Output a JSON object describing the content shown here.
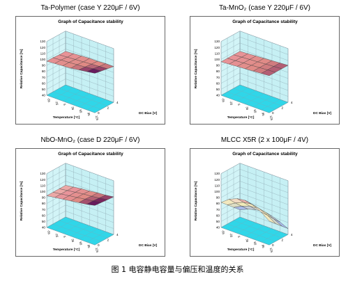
{
  "caption": "图 1  电容静电容量与偏压和温度的关系",
  "chart_data": [
    {
      "type": "surface",
      "panel_title": "Ta-Polymer (case Y 220μF / 6V)",
      "title": "Graph of Capacitance stability",
      "zlabel": "Relative Capacitance [%]",
      "xlabel": "Temperature [°C]",
      "ylabel": "DC Bias [V]",
      "zticks": [
        "130",
        "120",
        "110",
        "100",
        "90",
        "80",
        "70",
        "60",
        "50",
        "40"
      ],
      "xticks": [
        "-55",
        "-25",
        "5",
        "35",
        "65",
        "95",
        "125"
      ],
      "yticks": [
        "0",
        "2",
        "4"
      ],
      "zlim": [
        40,
        130
      ],
      "temperature": [
        -55,
        -25,
        5,
        35,
        65,
        95,
        125
      ],
      "bias": [
        0,
        2,
        4,
        6
      ],
      "values": [
        [
          97,
          98,
          99,
          100,
          102,
          104,
          106
        ],
        [
          97,
          98,
          99,
          100,
          101,
          103,
          104
        ],
        [
          96,
          97,
          98,
          99,
          100,
          101,
          102
        ],
        [
          96,
          97,
          98,
          99,
          99,
          100,
          100
        ]
      ]
    },
    {
      "type": "surface",
      "panel_title": "Ta-MnO₂ (case Y 220μF / 6V)",
      "title": "Graph of Capacitance stability",
      "zlabel": "Relative Capacitance [%]",
      "xlabel": "Temperature [°C]",
      "ylabel": "DC Bias [V]",
      "zticks": [
        "130",
        "120",
        "110",
        "100",
        "90",
        "80",
        "70",
        "60",
        "50",
        "40"
      ],
      "xticks": [
        "-55",
        "-25",
        "5",
        "35",
        "65",
        "95",
        "125"
      ],
      "yticks": [
        "0",
        "2",
        "4"
      ],
      "zlim": [
        40,
        130
      ],
      "temperature": [
        -55,
        -25,
        5,
        35,
        65,
        95,
        125
      ],
      "bias": [
        0,
        2,
        4,
        6
      ],
      "values": [
        [
          96,
          97,
          98,
          99,
          100,
          101,
          102
        ],
        [
          96,
          97,
          98,
          99,
          100,
          101,
          102
        ],
        [
          96,
          97,
          98,
          99,
          100,
          101,
          102
        ],
        [
          96,
          97,
          98,
          99,
          100,
          101,
          102
        ]
      ]
    },
    {
      "type": "surface",
      "panel_title": "NbO-MnO₂ (case D 220μF / 6V)",
      "title": "Graph of Capacitance stability",
      "zlabel": "Relative Capacitance [%]",
      "xlabel": "Temperature [°C]",
      "ylabel": "DC Bias [V]",
      "zticks": [
        "130",
        "120",
        "110",
        "100",
        "90",
        "80",
        "70",
        "60",
        "50",
        "40"
      ],
      "xticks": [
        "-55",
        "-25",
        "5",
        "35",
        "65",
        "95",
        "125"
      ],
      "yticks": [
        "0",
        "2",
        "4"
      ],
      "zlim": [
        40,
        130
      ],
      "temperature": [
        -55,
        -25,
        5,
        35,
        65,
        95,
        125
      ],
      "bias": [
        0,
        2,
        4,
        6
      ],
      "values": [
        [
          93,
          95,
          97,
          99,
          101,
          103,
          106
        ],
        [
          93,
          95,
          97,
          99,
          101,
          103,
          105
        ],
        [
          93,
          95,
          97,
          99,
          100,
          102,
          104
        ],
        [
          93,
          95,
          97,
          98,
          100,
          101,
          103
        ]
      ]
    },
    {
      "type": "surface",
      "panel_title": "MLCC X5R (2 x 100μF / 4V)",
      "title": "Graph of Capacitance stability",
      "zlabel": "Relative Capacitance [%]",
      "xlabel": "Temperature [°C]",
      "ylabel": "DC Bias [V]",
      "zticks": [
        "130",
        "120",
        "110",
        "100",
        "90",
        "80",
        "70",
        "60",
        "50",
        "40"
      ],
      "xticks": [
        "-55",
        "-25",
        "5",
        "35",
        "65",
        "95",
        "125"
      ],
      "yticks": [
        "0",
        "2",
        "4"
      ],
      "zlim": [
        40,
        130
      ],
      "temperature": [
        -55,
        -25,
        5,
        35,
        65,
        95,
        125
      ],
      "bias": [
        0,
        2,
        4,
        6
      ],
      "values": [
        [
          82,
          92,
          98,
          100,
          97,
          90,
          80
        ],
        [
          72,
          80,
          86,
          88,
          85,
          79,
          70
        ],
        [
          62,
          69,
          74,
          75,
          73,
          67,
          60
        ],
        [
          52,
          58,
          62,
          63,
          61,
          56,
          50
        ]
      ]
    }
  ]
}
